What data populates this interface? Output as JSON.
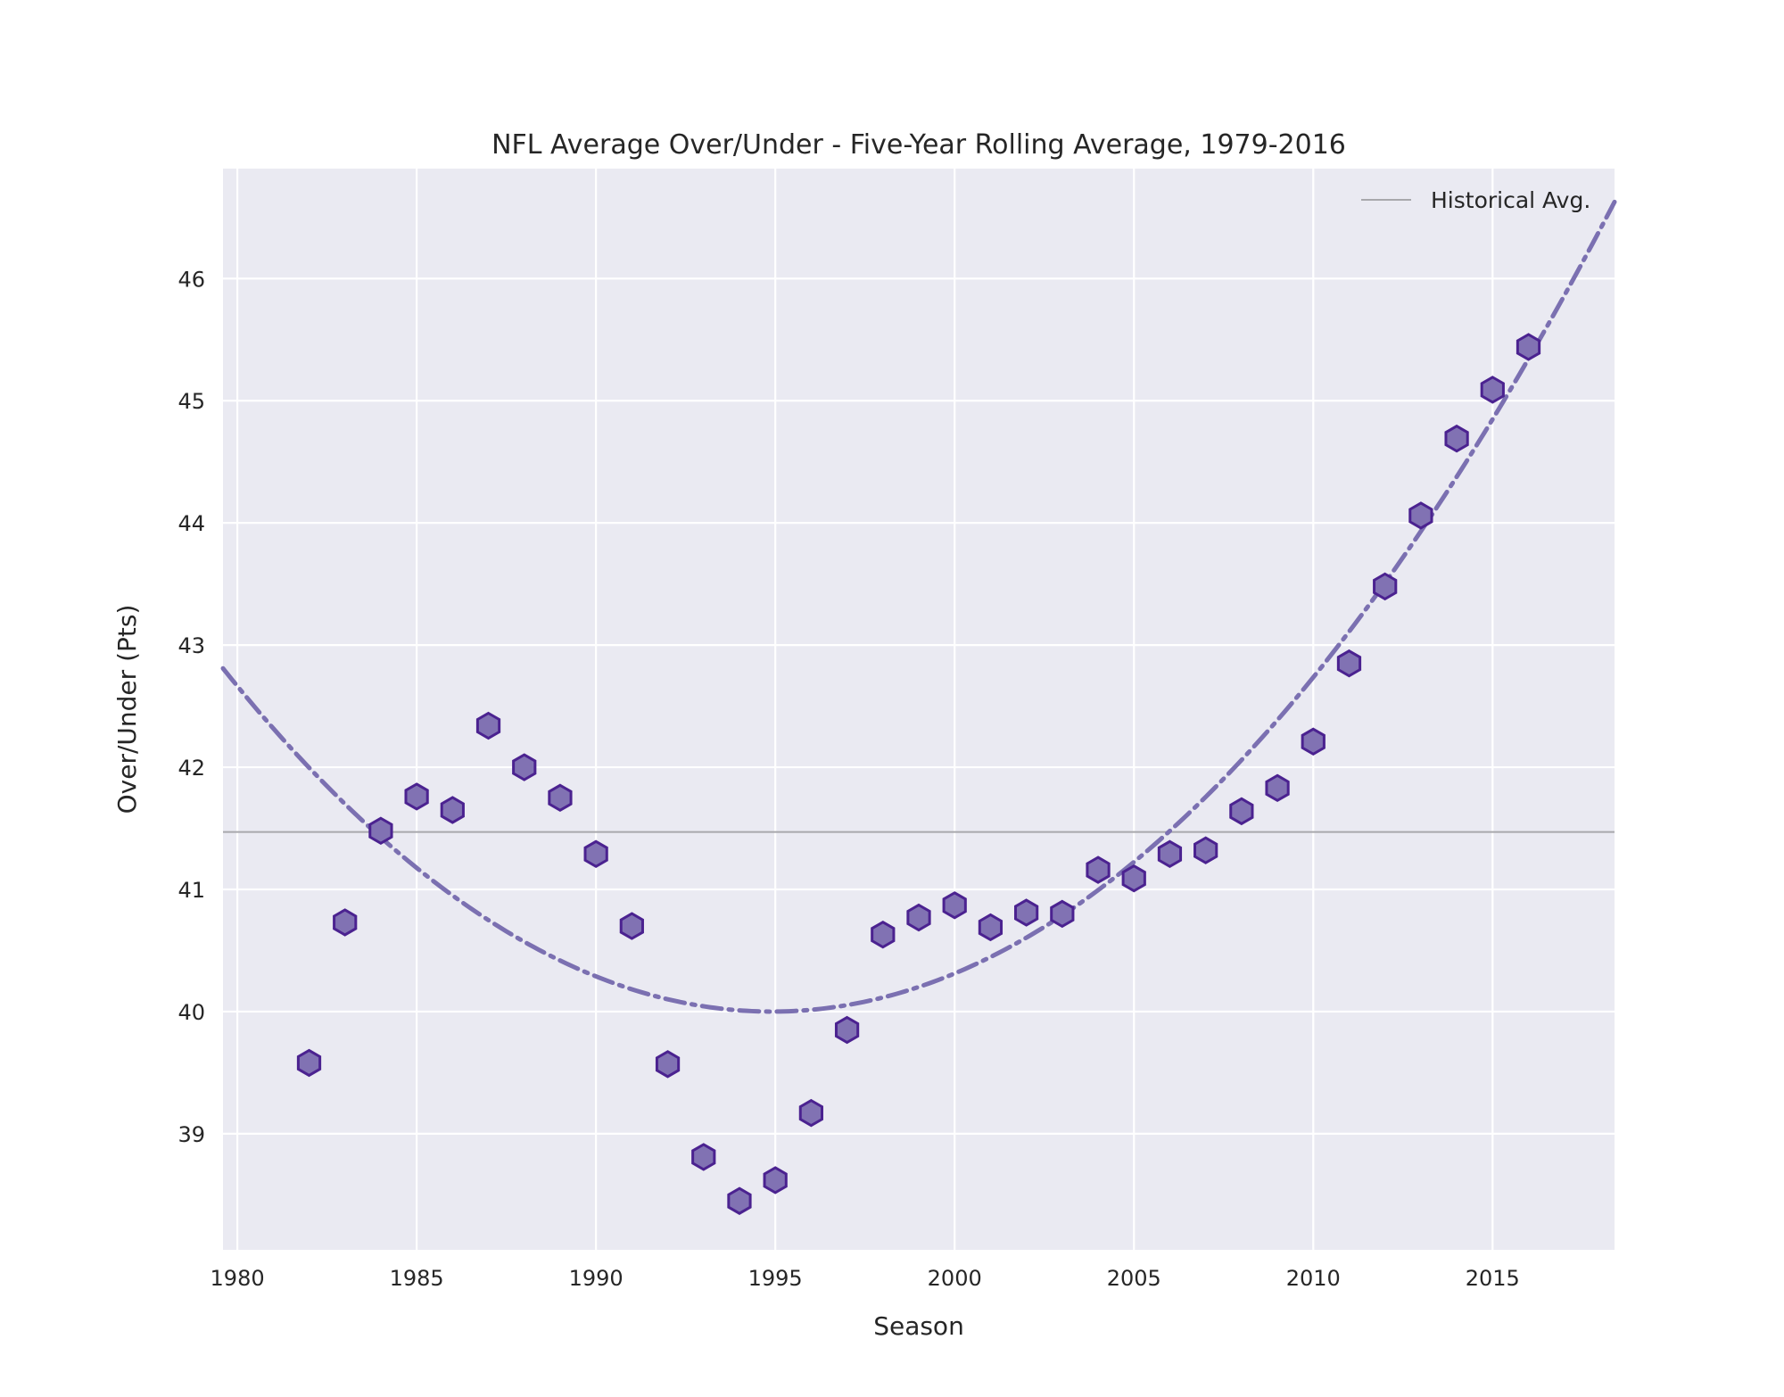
{
  "chart_data": {
    "type": "scatter",
    "title": "NFL Average Over/Under - Five-Year Rolling Average, 1979-2016",
    "xlabel": "Season",
    "ylabel": "Over/Under (Pts)",
    "xlim": [
      1979.6,
      2018.4
    ],
    "ylim": [
      38.05,
      46.9
    ],
    "xticks": [
      1980,
      1985,
      1990,
      1995,
      2000,
      2005,
      2010,
      2015
    ],
    "yticks": [
      39,
      40,
      41,
      42,
      43,
      44,
      45,
      46
    ],
    "grid": true,
    "legend": {
      "position": "top-right",
      "entries": [
        "Historical Avg."
      ]
    },
    "historical_avg": 41.47,
    "series": [
      {
        "name": "Five-Year Rolling Average",
        "marker": "hexagon",
        "x": [
          1982,
          1983,
          1984,
          1985,
          1986,
          1987,
          1988,
          1989,
          1990,
          1991,
          1992,
          1993,
          1994,
          1995,
          1996,
          1997,
          1998,
          1999,
          2000,
          2001,
          2002,
          2003,
          2004,
          2005,
          2006,
          2007,
          2008,
          2009,
          2010,
          2011,
          2012,
          2013,
          2014,
          2015,
          2016
        ],
        "values": [
          39.58,
          40.73,
          41.48,
          41.76,
          41.65,
          42.34,
          42.0,
          41.75,
          41.29,
          40.7,
          39.57,
          38.81,
          38.45,
          38.62,
          39.17,
          39.85,
          40.63,
          40.77,
          40.87,
          40.69,
          40.81,
          40.8,
          41.16,
          41.09,
          41.29,
          41.32,
          41.64,
          41.83,
          42.21,
          42.85,
          43.48,
          44.06,
          44.69,
          45.09,
          45.44
        ]
      },
      {
        "name": "Quadratic Trend",
        "line_style": "dash-dot",
        "vertex_x": 1994.9,
        "vertex_y": 40.0,
        "curvature": 0.012
      }
    ],
    "colors": {
      "marker_fill": "#8172b3",
      "marker_edge": "#4b2290",
      "trend_line": "#7b70b1",
      "avg_line": "#a8a8ac",
      "plot_background": "#eaeaf2",
      "grid": "#ffffff"
    }
  }
}
